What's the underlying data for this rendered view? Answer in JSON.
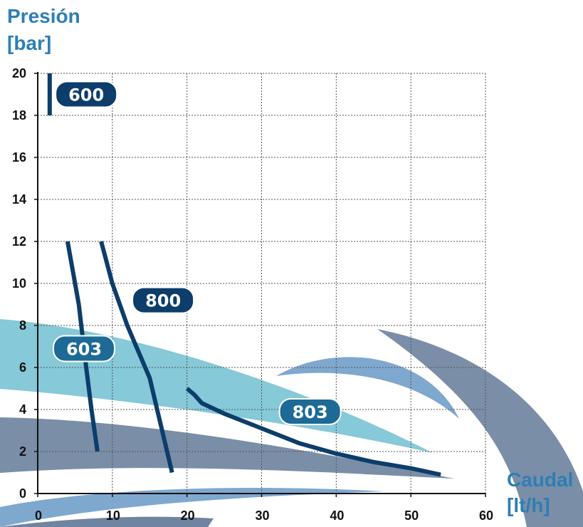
{
  "chart_data": {
    "type": "line",
    "ylabel": [
      "Presión",
      "[bar]"
    ],
    "xlabel": [
      "Caudal",
      "[lt/h]"
    ],
    "xlim": [
      0,
      60
    ],
    "ylim": [
      0,
      20
    ],
    "x_ticks": [
      "0",
      "10",
      "20",
      "30",
      "40",
      "50",
      "60"
    ],
    "y_ticks": [
      "0",
      "2",
      "4",
      "6",
      "8",
      "10",
      "12",
      "14",
      "16",
      "18",
      "20"
    ],
    "grid": true,
    "series": [
      {
        "name": "600",
        "color": "#0c3d6b",
        "badge_color": "#0c3d6b",
        "points": [
          [
            1.6,
            18.0
          ],
          [
            1.6,
            20.0
          ]
        ],
        "label_at": [
          6.5,
          19.0
        ]
      },
      {
        "name": "603",
        "color": "#0c3d6b",
        "badge_color": "#1d6a96",
        "points": [
          [
            4.0,
            12.0
          ],
          [
            5.5,
            9.0
          ],
          [
            6.5,
            6.0
          ],
          [
            7.2,
            4.0
          ],
          [
            8.0,
            2.0
          ]
        ],
        "label_at": [
          6.2,
          6.9
        ]
      },
      {
        "name": "800",
        "color": "#0c3d6b",
        "badge_color": "#0c3d6b",
        "points": [
          [
            8.5,
            12.0
          ],
          [
            10.0,
            10.0
          ],
          [
            12.0,
            8.0
          ],
          [
            15.0,
            5.5
          ],
          [
            18.0,
            1.0
          ]
        ],
        "label_at": [
          16.8,
          9.2
        ]
      },
      {
        "name": "803",
        "color": "#0c3d6b",
        "badge_color": "#1d6a96",
        "points": [
          [
            20.0,
            5.0
          ],
          [
            21.0,
            4.7
          ],
          [
            22.0,
            4.3
          ],
          [
            25.0,
            3.8
          ],
          [
            30.0,
            3.1
          ],
          [
            35.0,
            2.4
          ],
          [
            40.0,
            1.9
          ],
          [
            45.0,
            1.5
          ],
          [
            50.0,
            1.2
          ],
          [
            54.0,
            0.9
          ]
        ],
        "label_at": [
          36.5,
          3.9
        ]
      }
    ]
  }
}
